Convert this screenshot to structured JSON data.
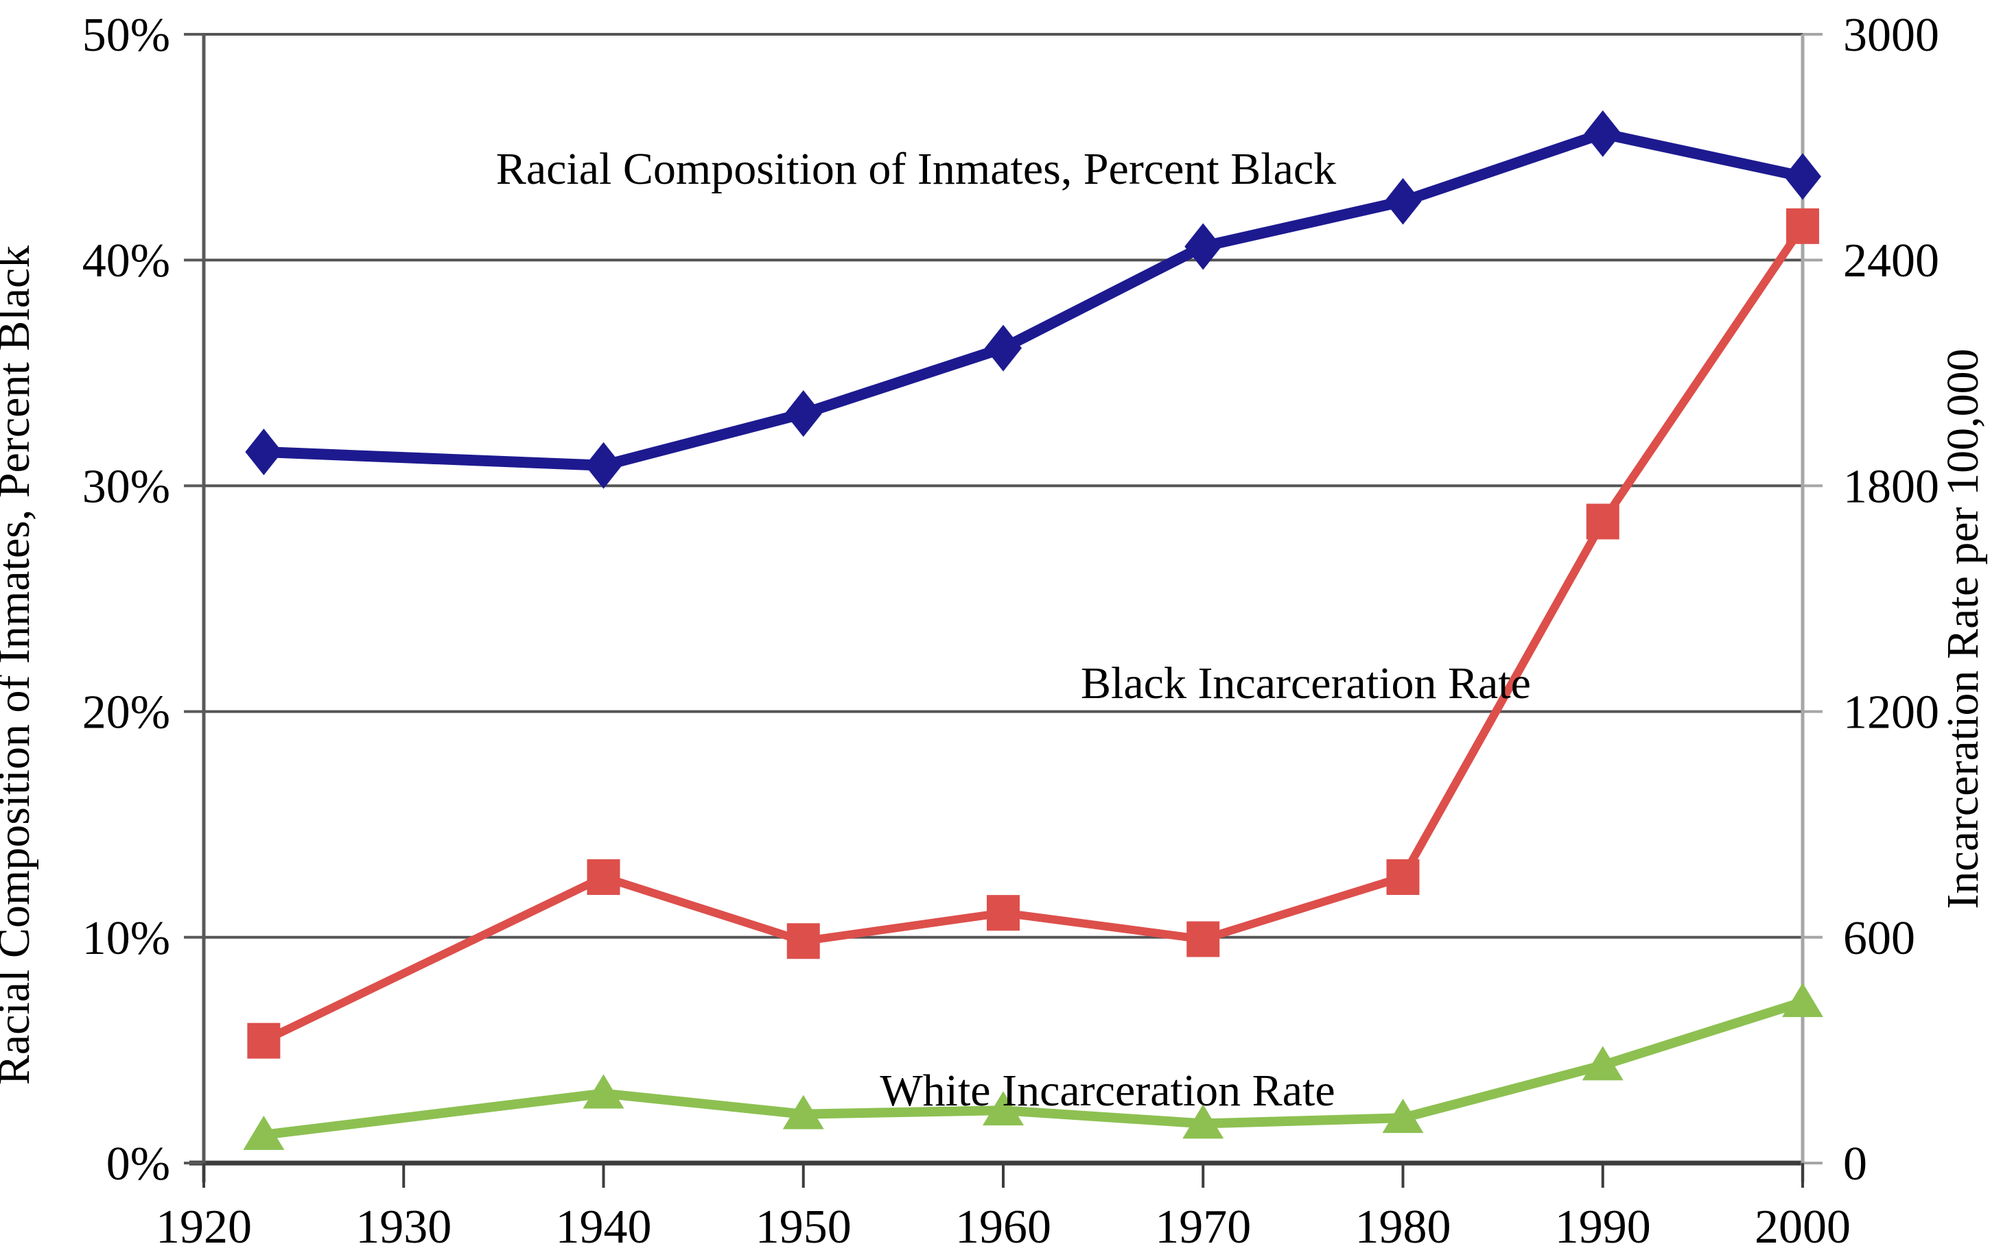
{
  "chart_data": {
    "type": "line",
    "x": [
      1923,
      1940,
      1950,
      1960,
      1970,
      1980,
      1990,
      2000
    ],
    "x_tick_labels": [
      "1920",
      "1930",
      "1940",
      "1950",
      "1960",
      "1970",
      "1980",
      "1990",
      "2000"
    ],
    "left_axis": {
      "label": "Racial Composition of Inmates, Percent Black",
      "tick_labels": [
        "0%",
        "10%",
        "20%",
        "30%",
        "40%",
        "50%"
      ],
      "tick_values": [
        0,
        10,
        20,
        30,
        40,
        50
      ],
      "min": 0,
      "max": 50
    },
    "right_axis": {
      "label": "Incarceration Rate per 100,000",
      "tick_labels": [
        "0",
        "600",
        "1200",
        "1800",
        "2400",
        "3000"
      ],
      "tick_values": [
        0,
        600,
        1200,
        1800,
        2400,
        3000
      ],
      "min": 0,
      "max": 3000
    },
    "series": [
      {
        "name": "Racial Composition of Inmates, Percent Black",
        "axis": "left",
        "marker": "diamond",
        "color": "#1d1a90",
        "values": [
          31.5,
          30.9,
          33.2,
          36.1,
          40.6,
          42.6,
          45.6,
          43.7
        ]
      },
      {
        "name": "Black Incarceration Rate",
        "axis": "right",
        "marker": "square",
        "color": "#dd4f4b",
        "values": [
          325,
          760,
          590,
          665,
          595,
          760,
          1705,
          2490
        ]
      },
      {
        "name": "White Incarceration Rate",
        "axis": "right",
        "marker": "triangle",
        "color": "#8dc051",
        "values": [
          75,
          185,
          130,
          140,
          105,
          120,
          260,
          428
        ]
      }
    ],
    "annotations": [
      {
        "text": "Racial Composition of Inmates, Percent Black"
      },
      {
        "text": "Black Incarceration Rate"
      },
      {
        "text": "White Incarceration Rate"
      }
    ],
    "colors": {
      "gridline": "#545454",
      "x_axis": "#3d3d3d",
      "left_axis_line": "#595959",
      "right_axis_line": "#a6a6a6",
      "background": "#ffffff"
    },
    "layout_hints": {
      "grid": "horizontal gridlines at every left-axis tick",
      "legend": "none (inline series labels)"
    }
  }
}
